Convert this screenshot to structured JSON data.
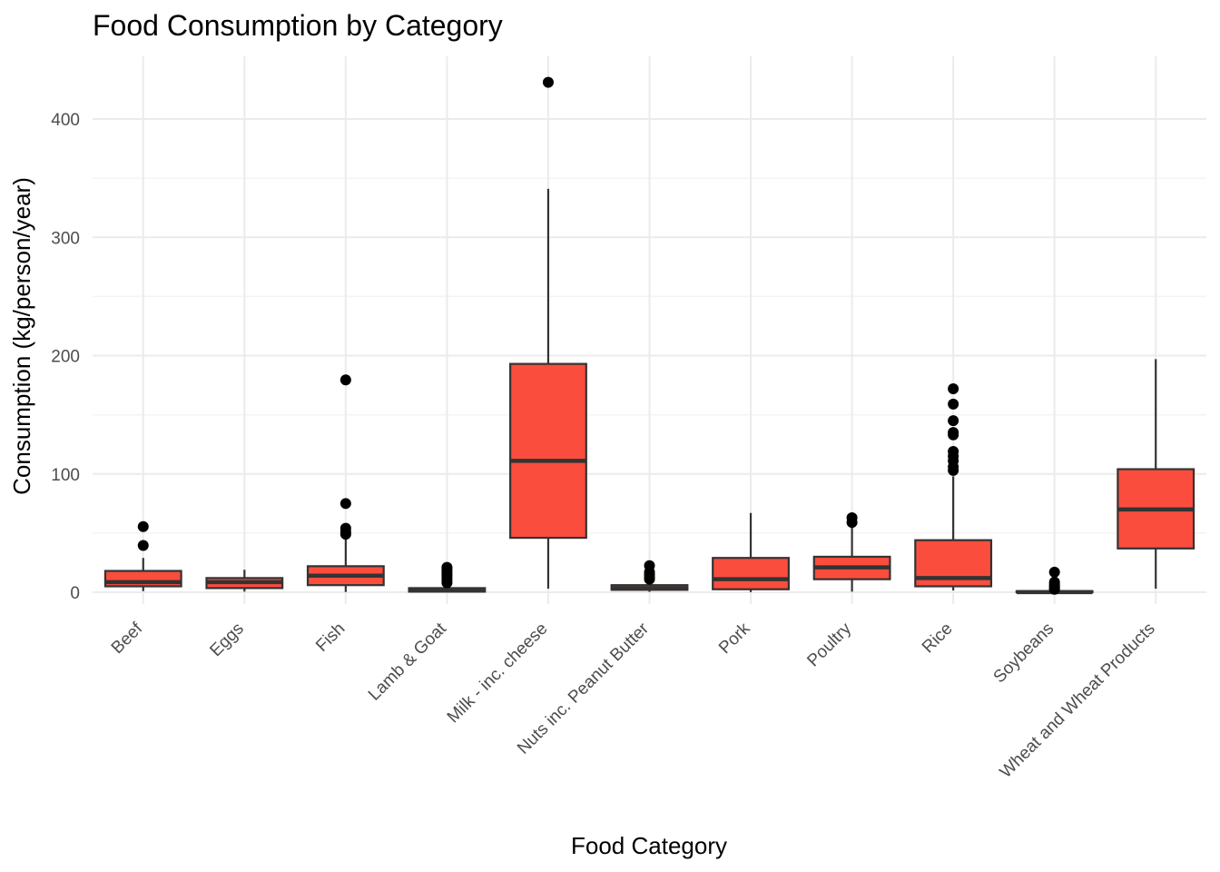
{
  "chart_data": {
    "type": "box",
    "title": "Food Consumption by Category",
    "xlabel": "Food Category",
    "ylabel": "Consumption (kg/person/year)",
    "ylim": [
      -10,
      450
    ],
    "yticks": [
      0,
      100,
      200,
      300,
      400
    ],
    "grid": true,
    "legend": "none",
    "fill_color": "#fb4d3d",
    "stroke_color": "#333333",
    "categories": [
      "Beef",
      "Eggs",
      "Fish",
      "Lamb & Goat",
      "Milk - inc. cheese",
      "Nuts inc. Peanut Butter",
      "Pork",
      "Poultry",
      "Rice",
      "Soybeans",
      "Wheat and Wheat Products"
    ],
    "boxes": [
      {
        "min": 0.9,
        "q1": 5,
        "median": 8.5,
        "q3": 18,
        "max": 29,
        "outliers": [
          39.5,
          55.5
        ]
      },
      {
        "min": 0.5,
        "q1": 3.5,
        "median": 8.5,
        "q3": 12,
        "max": 19,
        "outliers": []
      },
      {
        "min": 0.2,
        "q1": 6,
        "median": 14,
        "q3": 22,
        "max": 45,
        "outliers": [
          49,
          51,
          54,
          75,
          179.5
        ]
      },
      {
        "min": 0,
        "q1": 0.5,
        "median": 1.5,
        "q3": 3.5,
        "max": 7,
        "outliers": [
          8,
          10,
          12,
          14,
          16,
          18,
          20,
          21
        ]
      },
      {
        "min": 3,
        "q1": 46,
        "median": 111,
        "q3": 193,
        "max": 341,
        "outliers": [
          431
        ]
      },
      {
        "min": 0.3,
        "q1": 2,
        "median": 3.5,
        "q3": 6,
        "max": 10,
        "outliers": [
          11,
          13,
          15,
          17,
          22.5
        ]
      },
      {
        "min": 0.1,
        "q1": 2.5,
        "median": 11,
        "q3": 29,
        "max": 67,
        "outliers": []
      },
      {
        "min": 0.5,
        "q1": 11,
        "median": 21,
        "q3": 30,
        "max": 57,
        "outliers": [
          59,
          63
        ]
      },
      {
        "min": 1.5,
        "q1": 5,
        "median": 12,
        "q3": 44,
        "max": 98,
        "outliers": [
          103,
          106,
          111,
          115,
          119,
          133,
          135,
          145,
          159,
          172
        ]
      },
      {
        "min": 0,
        "q1": 0,
        "median": 0.1,
        "q3": 0.9,
        "max": 1.7,
        "outliers": [
          2.5,
          3,
          4.5,
          5.5,
          7,
          8.5,
          17
        ]
      },
      {
        "min": 3,
        "q1": 37,
        "median": 70,
        "q3": 104,
        "max": 197,
        "outliers": []
      }
    ]
  }
}
